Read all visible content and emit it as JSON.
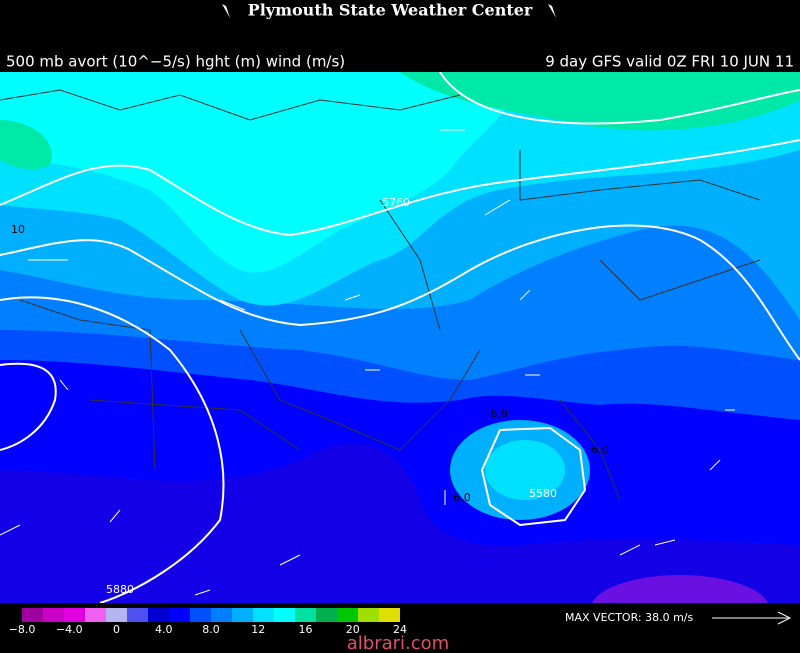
{
  "header": {
    "title": "Plymouth State Weather Center",
    "left": "500 mb avort (10^−5/s) hght (m) wind (m/s)",
    "right": "9 day GFS valid 0Z FRI 10 JUN 11"
  },
  "contour_labels": [
    "5760",
    "5880",
    "5580",
    "6.0",
    "6.0",
    "6.0",
    "10"
  ],
  "colorbar": {
    "colors": [
      "#a000a0",
      "#c800c8",
      "#e000e0",
      "#f060f0",
      "#b4b4f0",
      "#5050f0",
      "#0000d0",
      "#0000ff",
      "#0050ff",
      "#0080ff",
      "#00b0ff",
      "#00e0ff",
      "#00ffff",
      "#00e0a0",
      "#00b050",
      "#00c800",
      "#a0e000",
      "#e0e000"
    ],
    "labels": [
      "−8.0",
      "−4.0",
      "0",
      "4.0",
      "8.0",
      "12",
      "16",
      "20",
      "24"
    ]
  },
  "max_vector": "MAX VECTOR:  38.0 m/s",
  "watermark": "albrari.com"
}
